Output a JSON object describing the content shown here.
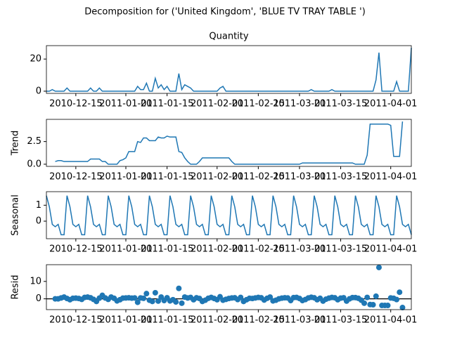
{
  "chart_data": {
    "type": "decomposition",
    "title": "Decomposition for ('United Kingdom', 'BLUE TV TRAY TABLE ')",
    "x": [
      "2010-12-05",
      "2010-12-06",
      "2010-12-07",
      "2010-12-08",
      "2010-12-09",
      "2010-12-10",
      "2010-12-11",
      "2010-12-12",
      "2010-12-13",
      "2010-12-14",
      "2010-12-15",
      "2010-12-16",
      "2010-12-17",
      "2010-12-18",
      "2010-12-19",
      "2010-12-20",
      "2010-12-21",
      "2010-12-22",
      "2010-12-23",
      "2010-12-24",
      "2010-12-25",
      "2010-12-26",
      "2010-12-27",
      "2010-12-28",
      "2010-12-29",
      "2010-12-30",
      "2010-12-31",
      "2011-01-01",
      "2011-01-02",
      "2011-01-03",
      "2011-01-04",
      "2011-01-05",
      "2011-01-06",
      "2011-01-07",
      "2011-01-08",
      "2011-01-09",
      "2011-01-10",
      "2011-01-11",
      "2011-01-12",
      "2011-01-13",
      "2011-01-14",
      "2011-01-15",
      "2011-01-16",
      "2011-01-17",
      "2011-01-18",
      "2011-01-19",
      "2011-01-20",
      "2011-01-21",
      "2011-01-22",
      "2011-01-23",
      "2011-01-24",
      "2011-01-25",
      "2011-01-26",
      "2011-01-27",
      "2011-01-28",
      "2011-01-29",
      "2011-01-30",
      "2011-01-31",
      "2011-02-01",
      "2011-02-02",
      "2011-02-03",
      "2011-02-04",
      "2011-02-05",
      "2011-02-06",
      "2011-02-07",
      "2011-02-08",
      "2011-02-09",
      "2011-02-10",
      "2011-02-11",
      "2011-02-12",
      "2011-02-13",
      "2011-02-14",
      "2011-02-15",
      "2011-02-16",
      "2011-02-17",
      "2011-02-18",
      "2011-02-19",
      "2011-02-20",
      "2011-02-21",
      "2011-02-22",
      "2011-02-23",
      "2011-02-24",
      "2011-02-25",
      "2011-02-26",
      "2011-02-27",
      "2011-02-28",
      "2011-03-01",
      "2011-03-02",
      "2011-03-03",
      "2011-03-04",
      "2011-03-05",
      "2011-03-06",
      "2011-03-07",
      "2011-03-08",
      "2011-03-09",
      "2011-03-10",
      "2011-03-11",
      "2011-03-12",
      "2011-03-13",
      "2011-03-14",
      "2011-03-15",
      "2011-03-16",
      "2011-03-17",
      "2011-03-18",
      "2011-03-19",
      "2011-03-20",
      "2011-03-21",
      "2011-03-22",
      "2011-03-23",
      "2011-03-24",
      "2011-03-25",
      "2011-03-26",
      "2011-03-27",
      "2011-03-28",
      "2011-03-29",
      "2011-03-30",
      "2011-03-31",
      "2011-04-01",
      "2011-04-02",
      "2011-04-03",
      "2011-04-04",
      "2011-04-05",
      "2011-04-06",
      "2011-04-07",
      "2011-04-08"
    ],
    "xlim": [
      "2010-12-05",
      "2011-04-08"
    ],
    "xticks": [
      "2010-12-15",
      "2011-01-01",
      "2011-01-15",
      "2011-02-01",
      "2011-02-15",
      "2011-03-01",
      "2011-03-15",
      "2011-04-01"
    ],
    "panels": [
      {
        "type": "line",
        "title": "Quantity",
        "color": "#1f77b4",
        "ylim": [
          -1.35,
          28.35
        ],
        "yticks": [
          0,
          20
        ],
        "values": [
          0,
          0,
          1,
          0,
          0,
          0,
          0,
          2,
          0,
          0,
          0,
          0,
          0,
          0,
          0,
          2,
          0,
          0,
          2,
          0,
          0,
          0,
          0,
          0,
          0,
          0,
          0,
          0,
          0,
          0,
          0,
          3,
          1,
          1,
          5,
          0,
          0,
          8,
          2,
          4,
          1,
          3,
          0,
          0,
          0,
          11,
          1,
          4,
          3,
          2,
          0,
          0,
          0,
          0,
          0,
          0,
          0,
          0,
          0,
          2,
          3,
          0,
          0,
          0,
          0,
          0,
          0,
          0,
          0,
          0,
          0,
          0,
          0,
          0,
          0,
          0,
          0,
          0,
          0,
          0,
          0,
          0,
          0,
          0,
          0,
          0,
          0,
          0,
          0,
          0,
          1,
          0,
          0,
          0,
          0,
          0,
          0,
          1,
          0,
          0,
          0,
          0,
          0,
          0,
          0,
          0,
          0,
          0,
          0,
          0,
          0,
          0,
          7,
          24,
          0,
          0,
          0,
          0,
          0,
          6,
          0,
          0,
          0,
          0,
          27
        ]
      },
      {
        "type": "line",
        "ylabel": "Trend",
        "color": "#1f77b4",
        "ylim": [
          -0.24,
          4.95
        ],
        "yticks": [
          {
            "value": 0,
            "label": "0.0"
          },
          2.5
        ],
        "values": [
          null,
          null,
          null,
          0.3,
          0.4,
          0.4,
          0.3,
          0.3,
          0.3,
          0.3,
          0.3,
          0.3,
          0.3,
          0.3,
          0.3,
          0.57,
          0.57,
          0.57,
          0.57,
          0.3,
          0.3,
          0,
          0,
          0,
          0,
          0.4,
          0.5,
          0.7,
          1.4,
          1.4,
          1.4,
          2.5,
          2.4,
          2.9,
          2.9,
          2.6,
          2.6,
          2.6,
          3.0,
          2.9,
          2.9,
          3.1,
          3.0,
          3.0,
          3.0,
          1.4,
          1.3,
          0.7,
          0.3,
          0,
          0,
          0,
          0.3,
          0.7,
          0.7,
          0.7,
          0.7,
          0.7,
          0.7,
          0.7,
          0.7,
          0.7,
          0.7,
          0.3,
          0,
          0,
          0,
          0,
          0,
          0,
          0,
          0,
          0,
          0,
          0,
          0,
          0,
          0,
          0,
          0,
          0,
          0,
          0,
          0,
          0,
          0,
          0,
          0.14,
          0.14,
          0.14,
          0.14,
          0.14,
          0.14,
          0.14,
          0.14,
          0.14,
          0.14,
          0.14,
          0.14,
          0.14,
          0.14,
          0.14,
          0.14,
          0.14,
          0.14,
          0,
          0,
          0,
          0,
          1.0,
          4.43,
          4.43,
          4.43,
          4.43,
          4.43,
          4.43,
          4.43,
          4.29,
          0.86,
          0.86,
          0.86,
          4.71,
          null,
          null,
          null
        ]
      },
      {
        "type": "line",
        "ylabel": "Seasonal",
        "color": "#1f77b4",
        "ylim": [
          -1.1,
          1.85
        ],
        "yticks": [
          0,
          1
        ],
        "values": [
          1.6,
          0.9,
          -0.2,
          -0.35,
          -0.2,
          -0.85,
          -0.85,
          1.6,
          0.9,
          -0.2,
          -0.35,
          -0.2,
          -0.85,
          -0.85,
          1.6,
          0.9,
          -0.2,
          -0.35,
          -0.2,
          -0.85,
          -0.85,
          1.6,
          0.9,
          -0.2,
          -0.35,
          -0.2,
          -0.85,
          -0.85,
          1.6,
          0.9,
          -0.2,
          -0.35,
          -0.2,
          -0.85,
          -0.85,
          1.6,
          0.9,
          -0.2,
          -0.35,
          -0.2,
          -0.85,
          -0.85,
          1.6,
          0.9,
          -0.2,
          -0.35,
          -0.2,
          -0.85,
          -0.85,
          1.6,
          0.9,
          -0.2,
          -0.35,
          -0.2,
          -0.85,
          -0.85,
          1.6,
          0.9,
          -0.2,
          -0.35,
          -0.2,
          -0.85,
          -0.85,
          1.6,
          0.9,
          -0.2,
          -0.35,
          -0.2,
          -0.85,
          -0.85,
          1.6,
          0.9,
          -0.2,
          -0.35,
          -0.2,
          -0.85,
          -0.85,
          1.6,
          0.9,
          -0.2,
          -0.35,
          -0.2,
          -0.85,
          -0.85,
          1.6,
          0.9,
          -0.2,
          -0.35,
          -0.2,
          -0.85,
          -0.85,
          1.6,
          0.9,
          -0.2,
          -0.35,
          -0.2,
          -0.85,
          -0.85,
          1.6,
          0.9,
          -0.2,
          -0.35,
          -0.2,
          -0.85,
          -0.85,
          1.6,
          0.9,
          -0.2,
          -0.35,
          -0.2,
          -0.85,
          -0.85,
          1.6,
          0.9,
          -0.2,
          -0.35,
          -0.2,
          -0.85,
          -0.85,
          1.6,
          0.9,
          -0.2,
          -0.35,
          -0.2,
          -0.85
        ]
      },
      {
        "type": "scatter",
        "ylabel": "Resid",
        "color": "#1f77b4",
        "baseline": 0,
        "ylim": [
          -6.2,
          19.6
        ],
        "yticks": [
          0,
          10
        ],
        "values": [
          null,
          null,
          null,
          0,
          0,
          0.5,
          1,
          0.2,
          -0.5,
          0.3,
          0.4,
          0.2,
          -0.3,
          0.8,
          1,
          0.6,
          -0.3,
          -1.5,
          0.4,
          2,
          0.5,
          -0.3,
          1,
          0.3,
          -1.2,
          -0.5,
          0.4,
          0.5,
          0.6,
          0.4,
          0.5,
          -2,
          0.5,
          0.3,
          3,
          -0.8,
          -1.5,
          3.5,
          -1.3,
          1,
          -1,
          0.6,
          -1.2,
          -0.5,
          -1.8,
          6,
          -2.5,
          1,
          0.5,
          0.8,
          -0.5,
          0.6,
          0.2,
          -1.5,
          -0.8,
          0.3,
          0.8,
          0.2,
          -0.5,
          1.2,
          -0.8,
          -0.3,
          0.2,
          0.5,
          0.6,
          -0.4,
          0.8,
          -1.5,
          -0.5,
          0.3,
          0.2,
          0.5,
          0.8,
          0.6,
          -0.7,
          0.3,
          1,
          -1.2,
          -0.8,
          0,
          0.4,
          0.6,
          0.5,
          -1,
          0.7,
          0.8,
          0.2,
          -1,
          -0.4,
          0.5,
          0.9,
          0.6,
          -0.5,
          0.3,
          -1.3,
          -0.2,
          0.4,
          0.8,
          0.6,
          -0.5,
          0.4,
          0.6,
          -1.3,
          0,
          0.7,
          0.7,
          0.3,
          -0.8,
          -2.5,
          0.8,
          -3.3,
          -3.4,
          1.5,
          18,
          -3.8,
          -3.8,
          -3.8,
          0.5,
          0.3,
          -0.4,
          3.8,
          -5,
          null,
          null,
          null
        ]
      }
    ]
  }
}
